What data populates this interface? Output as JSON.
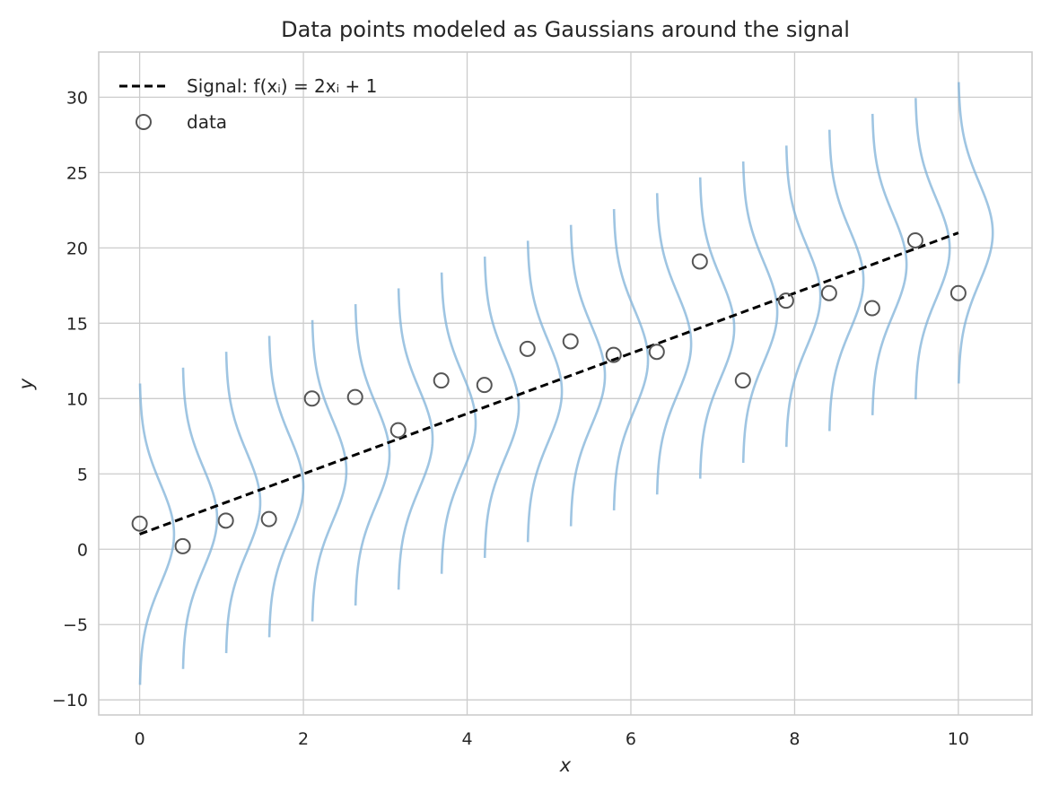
{
  "chart_data": {
    "type": "scatter",
    "title": "Data points modeled as Gaussians around the signal",
    "xlabel": "x",
    "ylabel": "y",
    "xlim": [
      -0.5,
      10.9
    ],
    "ylim": [
      -11,
      33
    ],
    "grid": true,
    "legend_position": "top-left",
    "x_ticks": [
      0,
      2,
      4,
      6,
      8,
      10
    ],
    "x_tick_labels": [
      "0",
      "2",
      "4",
      "6",
      "8",
      "10"
    ],
    "y_ticks": [
      -10,
      -5,
      0,
      5,
      10,
      15,
      20,
      25,
      30
    ],
    "y_tick_labels": [
      "−10",
      "−5",
      "0",
      "5",
      "10",
      "15",
      "20",
      "25",
      "30"
    ],
    "signal": {
      "name": "Signal: f(xᵢ) = 2xᵢ + 1",
      "slope": 2,
      "intercept": 1,
      "x_range": [
        0,
        10
      ],
      "style": "dashed",
      "color": "#000000"
    },
    "data": {
      "name": "data",
      "x": [
        0,
        0.526,
        1.053,
        1.579,
        2.105,
        2.632,
        3.158,
        3.684,
        4.211,
        4.737,
        5.263,
        5.789,
        6.316,
        6.842,
        7.368,
        7.895,
        8.421,
        8.947,
        9.474,
        10
      ],
      "y": [
        1.7,
        0.2,
        1.9,
        2.0,
        10.0,
        10.1,
        7.9,
        11.2,
        10.9,
        13.3,
        13.8,
        12.9,
        13.1,
        19.1,
        11.2,
        16.5,
        17.0,
        16.0,
        20.5,
        17.0
      ],
      "marker": "open-circle",
      "color": "#555555"
    },
    "gaussians": {
      "sigma": 3.33,
      "half_range": 10,
      "amplitude_x": 0.42,
      "color": "#7fb1d8"
    }
  }
}
